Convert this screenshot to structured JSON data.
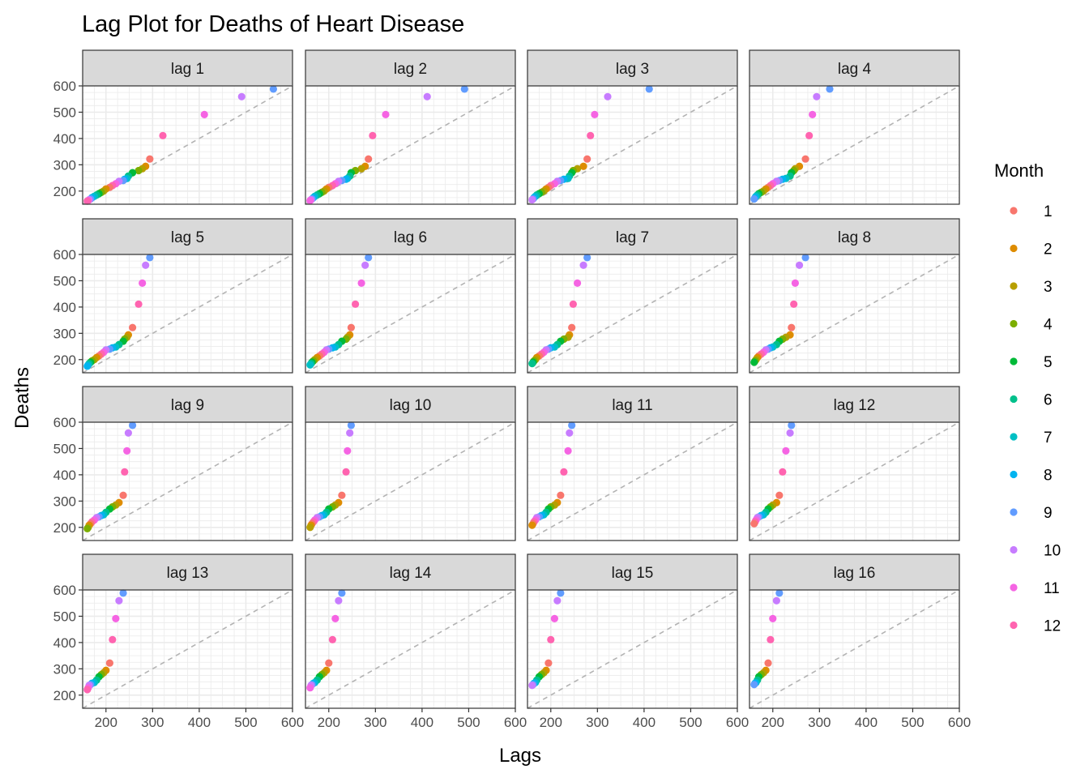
{
  "chart_data": {
    "type": "scatter",
    "title": "Lag Plot for Deaths of Heart Disease",
    "xlabel": "Lags",
    "ylabel": "Deaths",
    "xlim": [
      150,
      600
    ],
    "ylim": [
      150,
      600
    ],
    "x_ticks": [
      "200",
      "300",
      "400",
      "500",
      "600"
    ],
    "y_ticks": [
      "200",
      "300",
      "400",
      "500",
      "600"
    ],
    "grid": true,
    "reference_line": "dashed y = x",
    "legend": {
      "title": "Month",
      "position": "right",
      "entries": [
        {
          "label": "1",
          "color": "#F8766D"
        },
        {
          "label": "2",
          "color": "#DE8C00"
        },
        {
          "label": "3",
          "color": "#B79F00"
        },
        {
          "label": "4",
          "color": "#7CAE00"
        },
        {
          "label": "5",
          "color": "#00BA38"
        },
        {
          "label": "6",
          "color": "#00C08B"
        },
        {
          "label": "7",
          "color": "#00BFC4"
        },
        {
          "label": "8",
          "color": "#00B4F0"
        },
        {
          "label": "9",
          "color": "#619CFF"
        },
        {
          "label": "10",
          "color": "#C77CFF"
        },
        {
          "label": "11",
          "color": "#F564E3"
        },
        {
          "label": "12",
          "color": "#FF64B0"
        }
      ]
    },
    "panels": [
      "lag 1",
      "lag 2",
      "lag 3",
      "lag 4",
      "lag 5",
      "lag 6",
      "lag 7",
      "lag 8",
      "lag 9",
      "lag 10",
      "lag 11",
      "lag 12",
      "lag 13",
      "lag 14",
      "lag 15",
      "lag 16"
    ],
    "series_by_month": [
      588,
      559,
      491,
      411,
      322,
      294,
      285,
      278,
      270,
      257,
      248,
      245,
      240,
      237,
      228,
      221,
      214,
      208,
      200,
      195,
      190,
      185,
      180,
      175,
      170,
      167,
      164,
      162,
      160
    ],
    "month_of_observation": [
      9,
      10,
      11,
      12,
      1,
      2,
      3,
      4,
      5,
      6,
      7,
      8,
      9,
      10,
      11,
      12,
      1,
      2,
      3,
      4,
      5,
      6,
      7,
      8,
      9,
      10,
      11,
      12,
      1
    ]
  }
}
